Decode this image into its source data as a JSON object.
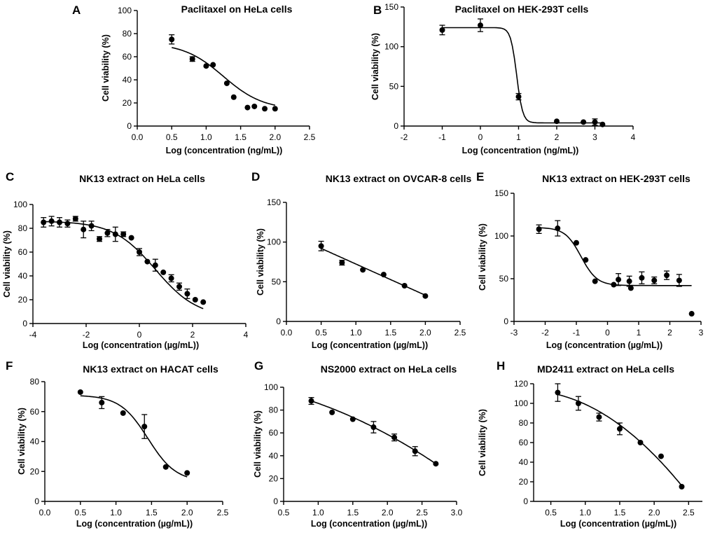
{
  "chart_data": [
    {
      "panel": "A",
      "type": "scatter",
      "title": "Paclitaxel on HeLa cells",
      "xlabel": "Log (concentration  (ng/mL))",
      "ylabel": "Cell viability (%)",
      "xlim": [
        0.0,
        2.5
      ],
      "ylim": [
        0,
        100
      ],
      "xticks": [
        "0.0",
        "0.5",
        "1.0",
        "1.5",
        "2.0",
        "2.5"
      ],
      "yticks": [
        "0",
        "20",
        "40",
        "60",
        "80",
        "100"
      ],
      "x": [
        0.5,
        0.8,
        1.0,
        1.1,
        1.3,
        1.4,
        1.6,
        1.7,
        1.85,
        2.0
      ],
      "y": [
        75,
        58,
        52,
        53,
        37,
        25,
        16,
        17,
        15,
        15
      ],
      "err": [
        4,
        2,
        1,
        1,
        1,
        1,
        1,
        1,
        1,
        1
      ],
      "fit": {
        "model": "sigmoid",
        "top": 72,
        "bottom": 14,
        "x50": 1.25,
        "slope": 1.5
      }
    },
    {
      "panel": "B",
      "type": "scatter",
      "title": "Paclitaxel on HEK-293T cells",
      "xlabel": "Log (concentration  (ng/mL))",
      "ylabel": "Cell viability (%)",
      "xlim": [
        -2,
        4
      ],
      "ylim": [
        0,
        150
      ],
      "xticks": [
        "-2",
        "-1",
        "0",
        "1",
        "2",
        "3",
        "4"
      ],
      "yticks": [
        "0",
        "50",
        "100",
        "150"
      ],
      "x": [
        -1,
        0,
        1,
        2,
        2.7,
        3,
        3.2
      ],
      "y": [
        121,
        127,
        37,
        6,
        5,
        5,
        2
      ],
      "err": [
        6,
        8,
        4,
        1,
        1,
        4,
        1
      ],
      "fit": {
        "model": "sigmoid",
        "top": 124,
        "bottom": 4,
        "x50": 0.95,
        "slope": 5.5
      }
    },
    {
      "panel": "C",
      "type": "scatter",
      "title": "NK13 extract on HeLa cells",
      "xlabel": "Log (concentration  (µg/mL))",
      "ylabel": "Cell viability (%)",
      "xlim": [
        -4,
        4
      ],
      "ylim": [
        0,
        100
      ],
      "xticks": [
        "-4",
        "-2",
        "0",
        "2",
        "4"
      ],
      "yticks": [
        "0",
        "20",
        "40",
        "60",
        "80",
        "100"
      ],
      "x": [
        -3.6,
        -3.3,
        -3.0,
        -2.7,
        -2.4,
        -2.1,
        -1.8,
        -1.5,
        -1.2,
        -0.9,
        -0.6,
        -0.3,
        0.0,
        0.3,
        0.6,
        0.9,
        1.2,
        1.5,
        1.8,
        2.1,
        2.4
      ],
      "y": [
        85,
        86,
        85,
        84,
        88,
        79,
        82,
        71,
        76,
        75,
        75,
        72,
        60,
        52,
        49,
        43,
        38,
        31,
        25,
        20,
        18
      ],
      "err": [
        4,
        4,
        4,
        3,
        2,
        7,
        4,
        2,
        3,
        6,
        2,
        1,
        3,
        1,
        5,
        1,
        3,
        3,
        4,
        1,
        1
      ],
      "fit": {
        "model": "sigmoid",
        "top": 86,
        "bottom": 5,
        "x50": 0.6,
        "slope": 0.55
      }
    },
    {
      "panel": "D",
      "type": "scatter",
      "title": "NK13 extract on OVCAR-8 cells",
      "xlabel": "Log (concentration  (µg/mL))",
      "ylabel": "Cell viability (%)",
      "xlim": [
        0.0,
        2.5
      ],
      "ylim": [
        0,
        150
      ],
      "xticks": [
        "0.0",
        "0.5",
        "1.0",
        "1.5",
        "2.0",
        "2.5"
      ],
      "yticks": [
        "0",
        "50",
        "100",
        "150"
      ],
      "x": [
        0.5,
        0.8,
        1.1,
        1.4,
        1.7,
        2.0
      ],
      "y": [
        95,
        74,
        65,
        59,
        45,
        32
      ],
      "err": [
        6,
        3,
        1,
        1,
        1,
        1
      ],
      "fit": {
        "model": "linear",
        "x0": 0.5,
        "y0": 92,
        "x1": 2.0,
        "y1": 33
      }
    },
    {
      "panel": "E",
      "type": "scatter",
      "title": "NK13 extract on HEK-293T cells",
      "xlabel": "Log (concentration  (µg/mL))",
      "ylabel": "Cell viability (%)",
      "xlim": [
        -3,
        3
      ],
      "ylim": [
        0,
        150
      ],
      "xticks": [
        "-3",
        "-2",
        "-1",
        "0",
        "1",
        "2",
        "3"
      ],
      "yticks": [
        "0",
        "50",
        "100",
        "150"
      ],
      "x": [
        -2.2,
        -1.6,
        -1.0,
        -0.7,
        -0.4,
        0.2,
        0.35,
        0.7,
        0.75,
        1.1,
        1.5,
        1.9,
        2.3,
        2.7
      ],
      "y": [
        108,
        109,
        92,
        72,
        47,
        43,
        49,
        47,
        39,
        51,
        48,
        54,
        48,
        9
      ],
      "err": [
        5,
        9,
        1,
        1,
        1,
        1,
        7,
        6,
        1,
        7,
        4,
        5,
        7,
        1
      ],
      "fit": {
        "model": "sigmoid",
        "top": 110,
        "bottom": 42,
        "x50": -0.85,
        "slope": 1.7
      }
    },
    {
      "panel": "F",
      "type": "scatter",
      "title": "NK13 extract on HACAT cells",
      "xlabel": "Log (concentration  (µg/mL))",
      "ylabel": "Cell viability (%)",
      "xlim": [
        0.0,
        2.5
      ],
      "ylim": [
        0,
        80
      ],
      "xticks": [
        "0.0",
        "0.5",
        "1.0",
        "1.5",
        "2.0",
        "2.5"
      ],
      "yticks": [
        "0",
        "20",
        "40",
        "60",
        "80"
      ],
      "x": [
        0.5,
        0.8,
        1.1,
        1.4,
        1.7,
        2.0
      ],
      "y": [
        73,
        66,
        59,
        50,
        23,
        19
      ],
      "err": [
        1,
        4,
        1,
        8,
        1,
        1
      ],
      "fit": {
        "model": "sigmoid",
        "top": 71,
        "bottom": 13,
        "x50": 1.45,
        "slope": 2.2
      }
    },
    {
      "panel": "G",
      "type": "scatter",
      "title": "NS2000 extract on HeLa cells",
      "xlabel": "Log (concentration  (µg/mL))",
      "ylabel": "Cell viability (%)",
      "xlim": [
        0.5,
        3.0
      ],
      "ylim": [
        0,
        100
      ],
      "xticks": [
        "0.5",
        "1.0",
        "1.5",
        "2.0",
        "2.5",
        "3.0"
      ],
      "yticks": [
        "0",
        "20",
        "40",
        "60",
        "80",
        "100"
      ],
      "x": [
        0.9,
        1.2,
        1.5,
        1.8,
        2.1,
        2.4,
        2.7
      ],
      "y": [
        88,
        78,
        72,
        65,
        56,
        44,
        33
      ],
      "err": [
        3,
        1,
        1,
        5,
        3,
        4,
        1
      ],
      "fit": {
        "model": "quadratic",
        "points": [
          [
            0.9,
            88
          ],
          [
            1.8,
            65
          ],
          [
            2.7,
            33
          ]
        ]
      }
    },
    {
      "panel": "H",
      "type": "scatter",
      "title": "MD2411 extract on HeLa cells",
      "xlabel": "Log (concentration  (µg/mL))",
      "ylabel": "Cell viability (%)",
      "xlim": [
        0.25,
        2.7
      ],
      "ylim": [
        0,
        120
      ],
      "xticks": [
        "0.5",
        "1.0",
        "1.5",
        "2.0",
        "2.5"
      ],
      "yticks": [
        "0",
        "20",
        "40",
        "60",
        "80",
        "100",
        "120"
      ],
      "x": [
        0.6,
        0.9,
        1.2,
        1.5,
        1.8,
        2.1,
        2.4
      ],
      "y": [
        111,
        100,
        86,
        74,
        60,
        46,
        15
      ],
      "err": [
        9,
        7,
        4,
        6,
        1,
        1,
        1
      ],
      "fit": {
        "model": "quadratic",
        "points": [
          [
            0.6,
            109
          ],
          [
            1.5,
            78
          ],
          [
            2.4,
            16
          ]
        ]
      }
    }
  ]
}
